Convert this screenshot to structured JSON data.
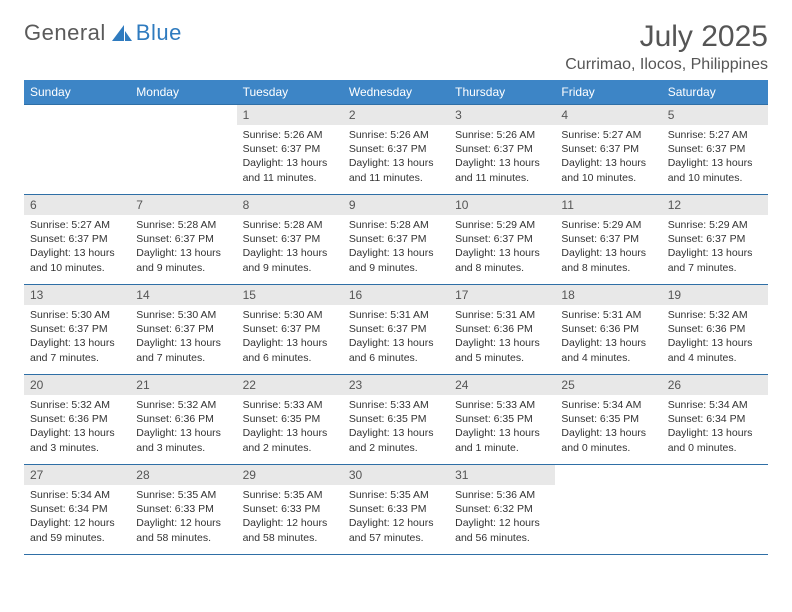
{
  "brand": {
    "part1": "General",
    "part2": "Blue"
  },
  "title": "July 2025",
  "location": "Currimao, Ilocos, Philippines",
  "colors": {
    "header_bg": "#3d85c6",
    "header_text": "#ffffff",
    "border": "#2f6fa6",
    "daynum_bg": "#e8e8e8",
    "text": "#333333",
    "brand_gray": "#5a5a5a",
    "brand_blue": "#2f7bbf",
    "background": "#ffffff"
  },
  "typography": {
    "body_fontsize": 10.5,
    "header_fontsize": 12,
    "title_fontsize": 30,
    "location_fontsize": 16
  },
  "layout": {
    "cols": 7,
    "rows": 5,
    "first_day_index": 2
  },
  "weekdays": [
    "Sunday",
    "Monday",
    "Tuesday",
    "Wednesday",
    "Thursday",
    "Friday",
    "Saturday"
  ],
  "days": [
    {
      "n": 1,
      "sunrise": "5:26 AM",
      "sunset": "6:37 PM",
      "daylight": "13 hours and 11 minutes."
    },
    {
      "n": 2,
      "sunrise": "5:26 AM",
      "sunset": "6:37 PM",
      "daylight": "13 hours and 11 minutes."
    },
    {
      "n": 3,
      "sunrise": "5:26 AM",
      "sunset": "6:37 PM",
      "daylight": "13 hours and 11 minutes."
    },
    {
      "n": 4,
      "sunrise": "5:27 AM",
      "sunset": "6:37 PM",
      "daylight": "13 hours and 10 minutes."
    },
    {
      "n": 5,
      "sunrise": "5:27 AM",
      "sunset": "6:37 PM",
      "daylight": "13 hours and 10 minutes."
    },
    {
      "n": 6,
      "sunrise": "5:27 AM",
      "sunset": "6:37 PM",
      "daylight": "13 hours and 10 minutes."
    },
    {
      "n": 7,
      "sunrise": "5:28 AM",
      "sunset": "6:37 PM",
      "daylight": "13 hours and 9 minutes."
    },
    {
      "n": 8,
      "sunrise": "5:28 AM",
      "sunset": "6:37 PM",
      "daylight": "13 hours and 9 minutes."
    },
    {
      "n": 9,
      "sunrise": "5:28 AM",
      "sunset": "6:37 PM",
      "daylight": "13 hours and 9 minutes."
    },
    {
      "n": 10,
      "sunrise": "5:29 AM",
      "sunset": "6:37 PM",
      "daylight": "13 hours and 8 minutes."
    },
    {
      "n": 11,
      "sunrise": "5:29 AM",
      "sunset": "6:37 PM",
      "daylight": "13 hours and 8 minutes."
    },
    {
      "n": 12,
      "sunrise": "5:29 AM",
      "sunset": "6:37 PM",
      "daylight": "13 hours and 7 minutes."
    },
    {
      "n": 13,
      "sunrise": "5:30 AM",
      "sunset": "6:37 PM",
      "daylight": "13 hours and 7 minutes."
    },
    {
      "n": 14,
      "sunrise": "5:30 AM",
      "sunset": "6:37 PM",
      "daylight": "13 hours and 7 minutes."
    },
    {
      "n": 15,
      "sunrise": "5:30 AM",
      "sunset": "6:37 PM",
      "daylight": "13 hours and 6 minutes."
    },
    {
      "n": 16,
      "sunrise": "5:31 AM",
      "sunset": "6:37 PM",
      "daylight": "13 hours and 6 minutes."
    },
    {
      "n": 17,
      "sunrise": "5:31 AM",
      "sunset": "6:36 PM",
      "daylight": "13 hours and 5 minutes."
    },
    {
      "n": 18,
      "sunrise": "5:31 AM",
      "sunset": "6:36 PM",
      "daylight": "13 hours and 4 minutes."
    },
    {
      "n": 19,
      "sunrise": "5:32 AM",
      "sunset": "6:36 PM",
      "daylight": "13 hours and 4 minutes."
    },
    {
      "n": 20,
      "sunrise": "5:32 AM",
      "sunset": "6:36 PM",
      "daylight": "13 hours and 3 minutes."
    },
    {
      "n": 21,
      "sunrise": "5:32 AM",
      "sunset": "6:36 PM",
      "daylight": "13 hours and 3 minutes."
    },
    {
      "n": 22,
      "sunrise": "5:33 AM",
      "sunset": "6:35 PM",
      "daylight": "13 hours and 2 minutes."
    },
    {
      "n": 23,
      "sunrise": "5:33 AM",
      "sunset": "6:35 PM",
      "daylight": "13 hours and 2 minutes."
    },
    {
      "n": 24,
      "sunrise": "5:33 AM",
      "sunset": "6:35 PM",
      "daylight": "13 hours and 1 minute."
    },
    {
      "n": 25,
      "sunrise": "5:34 AM",
      "sunset": "6:35 PM",
      "daylight": "13 hours and 0 minutes."
    },
    {
      "n": 26,
      "sunrise": "5:34 AM",
      "sunset": "6:34 PM",
      "daylight": "13 hours and 0 minutes."
    },
    {
      "n": 27,
      "sunrise": "5:34 AM",
      "sunset": "6:34 PM",
      "daylight": "12 hours and 59 minutes."
    },
    {
      "n": 28,
      "sunrise": "5:35 AM",
      "sunset": "6:33 PM",
      "daylight": "12 hours and 58 minutes."
    },
    {
      "n": 29,
      "sunrise": "5:35 AM",
      "sunset": "6:33 PM",
      "daylight": "12 hours and 58 minutes."
    },
    {
      "n": 30,
      "sunrise": "5:35 AM",
      "sunset": "6:33 PM",
      "daylight": "12 hours and 57 minutes."
    },
    {
      "n": 31,
      "sunrise": "5:36 AM",
      "sunset": "6:32 PM",
      "daylight": "12 hours and 56 minutes."
    }
  ],
  "labels": {
    "sunrise": "Sunrise:",
    "sunset": "Sunset:",
    "daylight": "Daylight:"
  }
}
